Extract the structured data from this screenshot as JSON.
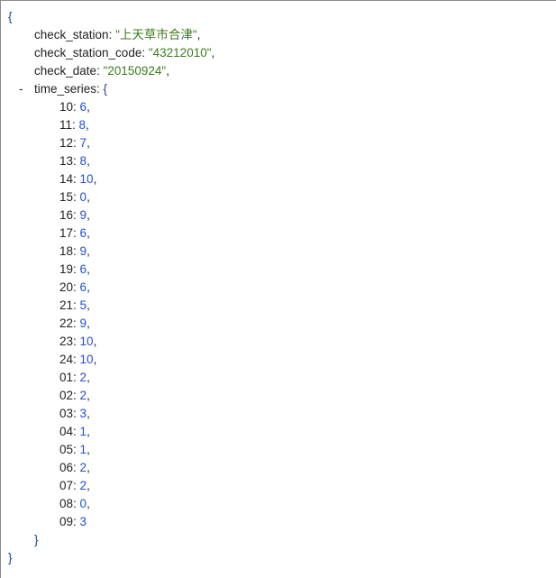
{
  "open_brace": "{",
  "close_brace": "}",
  "fields": [
    {
      "key": "check_station",
      "value": "\"上天草市合津\""
    },
    {
      "key": "check_station_code",
      "value": "\"43212010\""
    },
    {
      "key": "check_date",
      "value": "\"20150924\""
    }
  ],
  "time_series": {
    "key": "time_series",
    "toggle": "-",
    "open": "{",
    "close": "}",
    "entries": [
      {
        "key": "10",
        "value": "6"
      },
      {
        "key": "11",
        "value": "8"
      },
      {
        "key": "12",
        "value": "7"
      },
      {
        "key": "13",
        "value": "8"
      },
      {
        "key": "14",
        "value": "10"
      },
      {
        "key": "15",
        "value": "0"
      },
      {
        "key": "16",
        "value": "9"
      },
      {
        "key": "17",
        "value": "6"
      },
      {
        "key": "18",
        "value": "9"
      },
      {
        "key": "19",
        "value": "6"
      },
      {
        "key": "20",
        "value": "6"
      },
      {
        "key": "21",
        "value": "5"
      },
      {
        "key": "22",
        "value": "9"
      },
      {
        "key": "23",
        "value": "10"
      },
      {
        "key": "24",
        "value": "10"
      },
      {
        "key": "01",
        "value": "2"
      },
      {
        "key": "02",
        "value": "2"
      },
      {
        "key": "03",
        "value": "3"
      },
      {
        "key": "04",
        "value": "1"
      },
      {
        "key": "05",
        "value": "1"
      },
      {
        "key": "06",
        "value": "2"
      },
      {
        "key": "07",
        "value": "2"
      },
      {
        "key": "08",
        "value": "0"
      },
      {
        "key": "09",
        "value": "3"
      }
    ]
  },
  "colors": {
    "string": "#3c7a1c",
    "number": "#1f4fe0",
    "brace": "#1a3f9a"
  }
}
